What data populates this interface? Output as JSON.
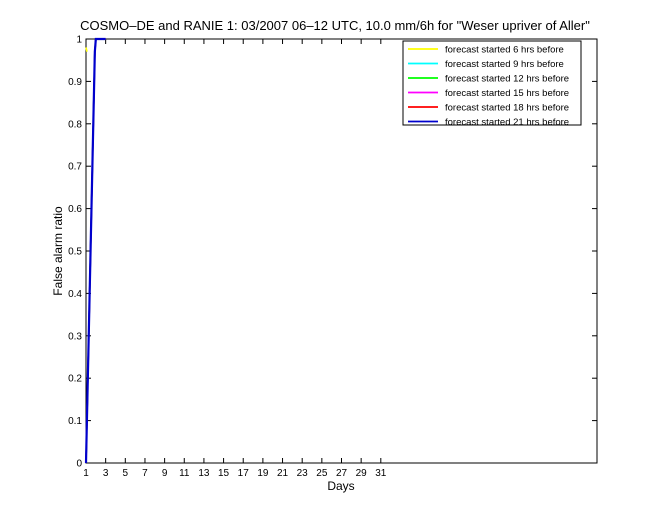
{
  "chart_data": {
    "type": "line",
    "title": "COSMO–DE and RANIE 1: 03/2007 06–12 UTC, 10.0 mm/6h for \"Weser upriver of Aller\"",
    "xlabel": "Days",
    "ylabel": "False alarm ratio",
    "xlim": [
      1,
      53
    ],
    "ylim": [
      0,
      1
    ],
    "x_ticks": [
      1,
      3,
      5,
      7,
      9,
      11,
      13,
      15,
      17,
      19,
      21,
      23,
      25,
      27,
      29,
      31
    ],
    "y_ticks": [
      0,
      0.1,
      0.2,
      0.3,
      0.4,
      0.5,
      0.6,
      0.7,
      0.8,
      0.9,
      1
    ],
    "y_tick_labels": [
      "0",
      "0.1",
      "0.2",
      "0.3",
      "0.4",
      "0.5",
      "0.6",
      "0.7",
      "0.8",
      "0.9",
      "1"
    ],
    "grid": false,
    "legend_position": "top-right",
    "series": [
      {
        "name": "forecast started 6 hrs before",
        "color": "#ffff00",
        "x": [
          1,
          1.1
        ],
        "y": [
          0.98,
          0.97
        ]
      },
      {
        "name": "forecast started 9 hrs before",
        "color": "#00ffff",
        "x": [
          1,
          1.9,
          2.0,
          3.0
        ],
        "y": [
          0,
          0.97,
          1,
          1
        ]
      },
      {
        "name": "forecast started 12 hrs before",
        "color": "#00ff00",
        "x": [
          1,
          1.9,
          2.0,
          3.0
        ],
        "y": [
          0,
          0.97,
          1,
          1
        ]
      },
      {
        "name": "forecast started 15 hrs before",
        "color": "#ff00ff",
        "x": [
          1,
          1.9,
          2.0,
          3.0
        ],
        "y": [
          0,
          0.97,
          1,
          1
        ]
      },
      {
        "name": "forecast started 18 hrs before",
        "color": "#ff0000",
        "x": [
          1,
          1.9,
          2.0,
          3.0
        ],
        "y": [
          0,
          0.97,
          1,
          1
        ]
      },
      {
        "name": "forecast started 21 hrs before",
        "color": "#0000cc",
        "x": [
          1,
          1.9,
          2.0,
          3.0
        ],
        "y": [
          0,
          0.97,
          1,
          1
        ]
      }
    ]
  }
}
